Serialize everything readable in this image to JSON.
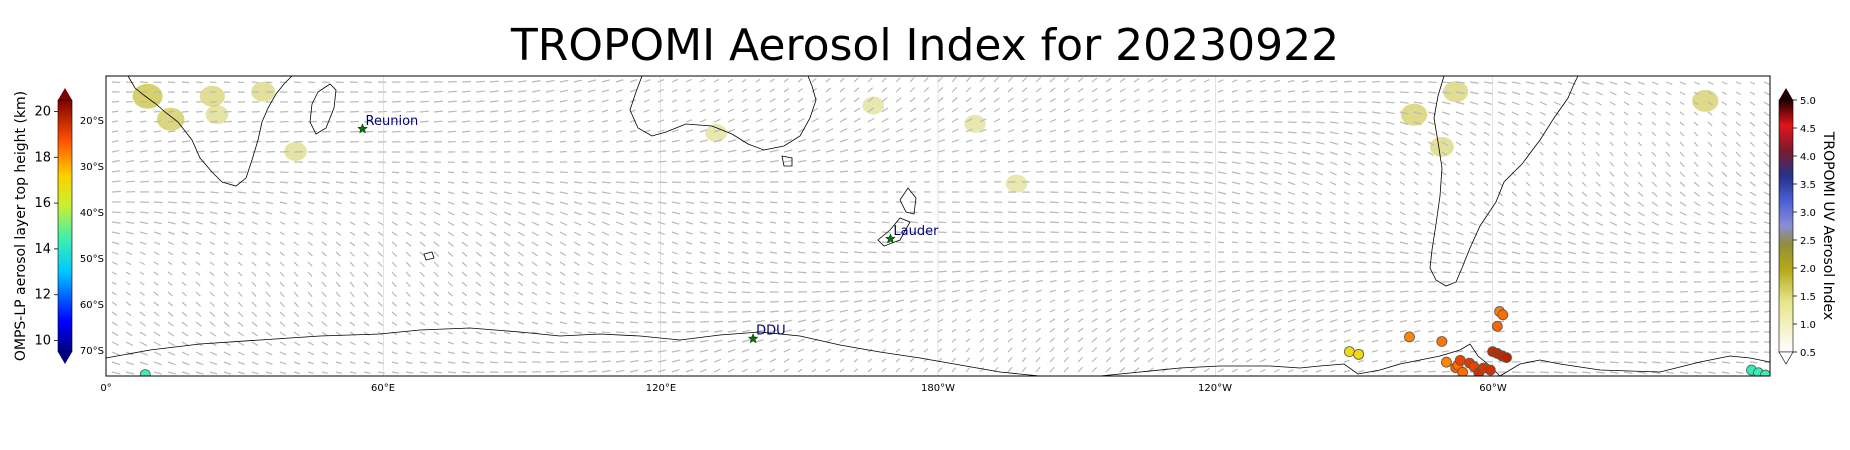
{
  "title": "TROPOMI Aerosol Index for 20230922",
  "map": {
    "lon_ticks": [
      "0°",
      "60°E",
      "120°E",
      "180°W",
      "120°W",
      "60°W"
    ],
    "lat_ticks": [
      "20°S",
      "30°S",
      "40°S",
      "50°S",
      "60°S",
      "70°S"
    ],
    "sites": [
      {
        "name": "Reunion",
        "lon": 55.5,
        "lat": -21.1
      },
      {
        "name": "Lauder",
        "lon": 169.7,
        "lat": -45.0
      },
      {
        "name": "DDU",
        "lon": 140.0,
        "lat": -66.7
      }
    ]
  },
  "left_colorbar": {
    "label": "OMPS-LP aerosol layer top height (km)",
    "ticks": [
      "10",
      "12",
      "14",
      "16",
      "18",
      "20"
    ],
    "range": [
      9.5,
      20.5
    ]
  },
  "right_colorbar": {
    "label": "TROPOMI UV Aerosol Index",
    "ticks": [
      "0.5",
      "1.0",
      "1.5",
      "2.0",
      "2.5",
      "3.0",
      "3.5",
      "4.0",
      "4.5",
      "5.0"
    ],
    "range": [
      0.5,
      5.0
    ]
  },
  "omps_points": [
    {
      "lon": 8.5,
      "lat": -74.5,
      "height_km": 14.5
    },
    {
      "lon": 269,
      "lat": -69.5,
      "height_km": 16.8
    },
    {
      "lon": 271,
      "lat": -70.1,
      "height_km": 16.8
    },
    {
      "lon": 282,
      "lat": -66.3,
      "height_km": 18.1
    },
    {
      "lon": 289,
      "lat": -67.3,
      "height_km": 18.3
    },
    {
      "lon": 290,
      "lat": -71.8,
      "height_km": 18.1
    },
    {
      "lon": 292,
      "lat": -73.0,
      "height_km": 18.6
    },
    {
      "lon": 292.5,
      "lat": -72.4,
      "height_km": 18.3
    },
    {
      "lon": 293,
      "lat": -71.4,
      "height_km": 19.0
    },
    {
      "lon": 293.5,
      "lat": -74.0,
      "height_km": 18.4
    },
    {
      "lon": 295,
      "lat": -72.0,
      "height_km": 19.2
    },
    {
      "lon": 296,
      "lat": -72.8,
      "height_km": 19.0
    },
    {
      "lon": 297,
      "lat": -74.1,
      "height_km": 19.4
    },
    {
      "lon": 298,
      "lat": -73.1,
      "height_km": 19.3
    },
    {
      "lon": 299.5,
      "lat": -73.5,
      "height_km": 19.4
    },
    {
      "lon": 300,
      "lat": -69.5,
      "height_km": 19.5
    },
    {
      "lon": 301,
      "lat": -69.9,
      "height_km": 19.6
    },
    {
      "lon": 302,
      "lat": -70.4,
      "height_km": 19.6
    },
    {
      "lon": 303,
      "lat": -70.8,
      "height_km": 19.7
    },
    {
      "lon": 301,
      "lat": -64.0,
      "height_km": 18.5
    },
    {
      "lon": 301.5,
      "lat": -60.8,
      "height_km": 18.2
    },
    {
      "lon": 302.2,
      "lat": -61.5,
      "height_km": 18.4
    },
    {
      "lon": 356,
      "lat": -73.5,
      "height_km": 14.2
    },
    {
      "lon": 357.5,
      "lat": -74.1,
      "height_km": 14.3
    },
    {
      "lon": 359,
      "lat": -74.6,
      "height_km": 14.4
    }
  ],
  "aerosol_patches": [
    {
      "lon": 9,
      "lat": -14,
      "ai": 1.5
    },
    {
      "lon": 14,
      "lat": -19,
      "ai": 1.3
    },
    {
      "lon": 23,
      "lat": -14,
      "ai": 1.1
    },
    {
      "lon": 34,
      "lat": -13,
      "ai": 1.0
    },
    {
      "lon": 24,
      "lat": -18,
      "ai": 0.9
    },
    {
      "lon": 41,
      "lat": -26,
      "ai": 0.9
    },
    {
      "lon": 283,
      "lat": -18,
      "ai": 1.2
    },
    {
      "lon": 292,
      "lat": -13,
      "ai": 1.1
    },
    {
      "lon": 289,
      "lat": -25,
      "ai": 1.0
    },
    {
      "lon": 346,
      "lat": -15,
      "ai": 1.2
    },
    {
      "lon": 188,
      "lat": -20,
      "ai": 0.8
    },
    {
      "lon": 197,
      "lat": -33,
      "ai": 0.8
    },
    {
      "lon": 132,
      "lat": -22,
      "ai": 0.8
    },
    {
      "lon": 166,
      "lat": -16,
      "ai": 0.8
    }
  ]
}
